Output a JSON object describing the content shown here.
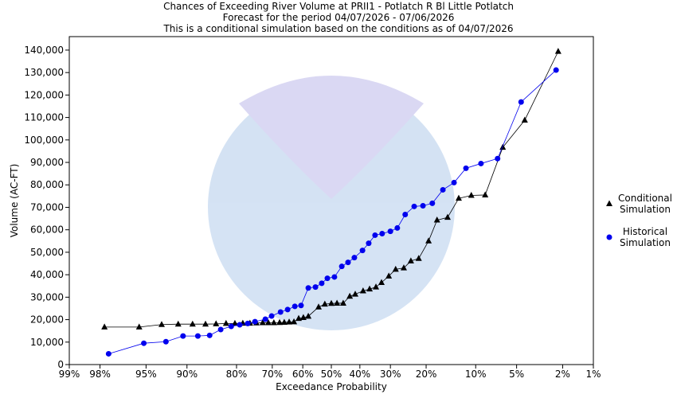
{
  "chart_data": {
    "type": "scatter-line",
    "title": "Chances of Exceeding River Volume at PRII1 - Potlatch R Bl Little Potlatch",
    "subtitle": "Forecast for the period 04/07/2026 - 07/06/2026",
    "note": "This is a conditional simulation based on the conditions as of 04/07/2026",
    "x_label": "Exceedance Probability",
    "y_label": "Volume (AC-FT)",
    "xscale": "probability",
    "xlim": [
      99,
      1
    ],
    "xticks": [
      {
        "value": 99,
        "label": "99%"
      },
      {
        "value": 98,
        "label": "98%"
      },
      {
        "value": 95,
        "label": "95%"
      },
      {
        "value": 90,
        "label": "90%"
      },
      {
        "value": 80,
        "label": "80%"
      },
      {
        "value": 70,
        "label": "70%"
      },
      {
        "value": 60,
        "label": "60%"
      },
      {
        "value": 50,
        "label": "50%"
      },
      {
        "value": 40,
        "label": "40%"
      },
      {
        "value": 30,
        "label": "30%"
      },
      {
        "value": 20,
        "label": "20%"
      },
      {
        "value": 10,
        "label": "10%"
      },
      {
        "value": 5,
        "label": "5%"
      },
      {
        "value": 2,
        "label": "2%"
      },
      {
        "value": 1,
        "label": "1%"
      }
    ],
    "ylim": [
      0,
      146000
    ],
    "yticks": [
      0,
      {
        "value": 10000,
        "label": "10,000"
      },
      {
        "value": 20000,
        "label": "20,000"
      },
      {
        "value": 30000,
        "label": "30,000"
      },
      {
        "value": 40000,
        "label": "40,000"
      },
      {
        "value": 50000,
        "label": "50,000"
      },
      {
        "value": 60000,
        "label": "60,000"
      },
      {
        "value": 70000,
        "label": "70,000"
      },
      {
        "value": 80000,
        "label": "80,000"
      },
      {
        "value": 90000,
        "label": "90,000"
      },
      {
        "value": 100000,
        "label": "100,000"
      },
      {
        "value": 110000,
        "label": "110,000"
      },
      {
        "value": 120000,
        "label": "120,000"
      },
      {
        "value": 130000,
        "label": "130,000"
      },
      {
        "value": 140000,
        "label": "140,000"
      }
    ],
    "grid": false,
    "legend": "right",
    "series": [
      {
        "name": "Conditional Simulation",
        "color": "#000000",
        "marker": "triangle",
        "x": [
          97.8,
          95.6,
          93.4,
          91.3,
          89.1,
          86.8,
          84.7,
          82.5,
          80.4,
          78.4,
          76.5,
          74.7,
          72.9,
          71.2,
          69.5,
          67.7,
          66.2,
          64.6,
          63.0,
          61.4,
          59.8,
          58.1,
          54.5,
          52.3,
          50.0,
          48.0,
          45.8,
          43.5,
          41.6,
          38.9,
          36.7,
          34.6,
          32.8,
          30.5,
          28.4,
          26.0,
          24.0,
          21.9,
          19.4,
          17.4,
          15.1,
          12.9,
          10.7,
          8.6,
          6.4,
          4.3,
          2.2
        ],
        "values": [
          16700,
          16700,
          17800,
          18000,
          18000,
          18000,
          18100,
          18300,
          18300,
          18400,
          18400,
          18500,
          18600,
          18600,
          18600,
          18700,
          18800,
          18900,
          19000,
          20500,
          20900,
          21500,
          25600,
          26900,
          27200,
          27300,
          27300,
          30400,
          31300,
          32800,
          33600,
          34500,
          36500,
          39400,
          42400,
          43000,
          46100,
          47200,
          55000,
          64300,
          65500,
          74000,
          75300,
          75500,
          96700,
          108800,
          139400
        ]
      },
      {
        "name": "Historical Simulation",
        "color": "#0000ee",
        "marker": "circle",
        "x": [
          97.6,
          95.2,
          92.9,
          90.6,
          88.2,
          86.0,
          83.7,
          81.3,
          79.2,
          77.1,
          75.1,
          72.1,
          70.2,
          67.4,
          65.1,
          62.7,
          60.6,
          58.1,
          55.6,
          53.4,
          51.4,
          48.9,
          46.3,
          44.1,
          41.9,
          39.1,
          37.0,
          34.9,
          32.6,
          30.0,
          27.9,
          25.6,
          23.1,
          20.8,
          18.5,
          16.1,
          13.8,
          11.6,
          9.2,
          7.0,
          4.6,
          2.3
        ],
        "values": [
          4800,
          9500,
          10200,
          12700,
          12700,
          13000,
          15600,
          17000,
          17700,
          18300,
          19100,
          20200,
          21600,
          23400,
          24500,
          25900,
          26300,
          34100,
          34500,
          36200,
          38400,
          39000,
          43700,
          45500,
          47600,
          50800,
          54000,
          57600,
          58300,
          59300,
          60800,
          66800,
          70400,
          70700,
          71800,
          77800,
          81000,
          87400,
          89500,
          91700,
          116900,
          131100
        ]
      }
    ]
  }
}
